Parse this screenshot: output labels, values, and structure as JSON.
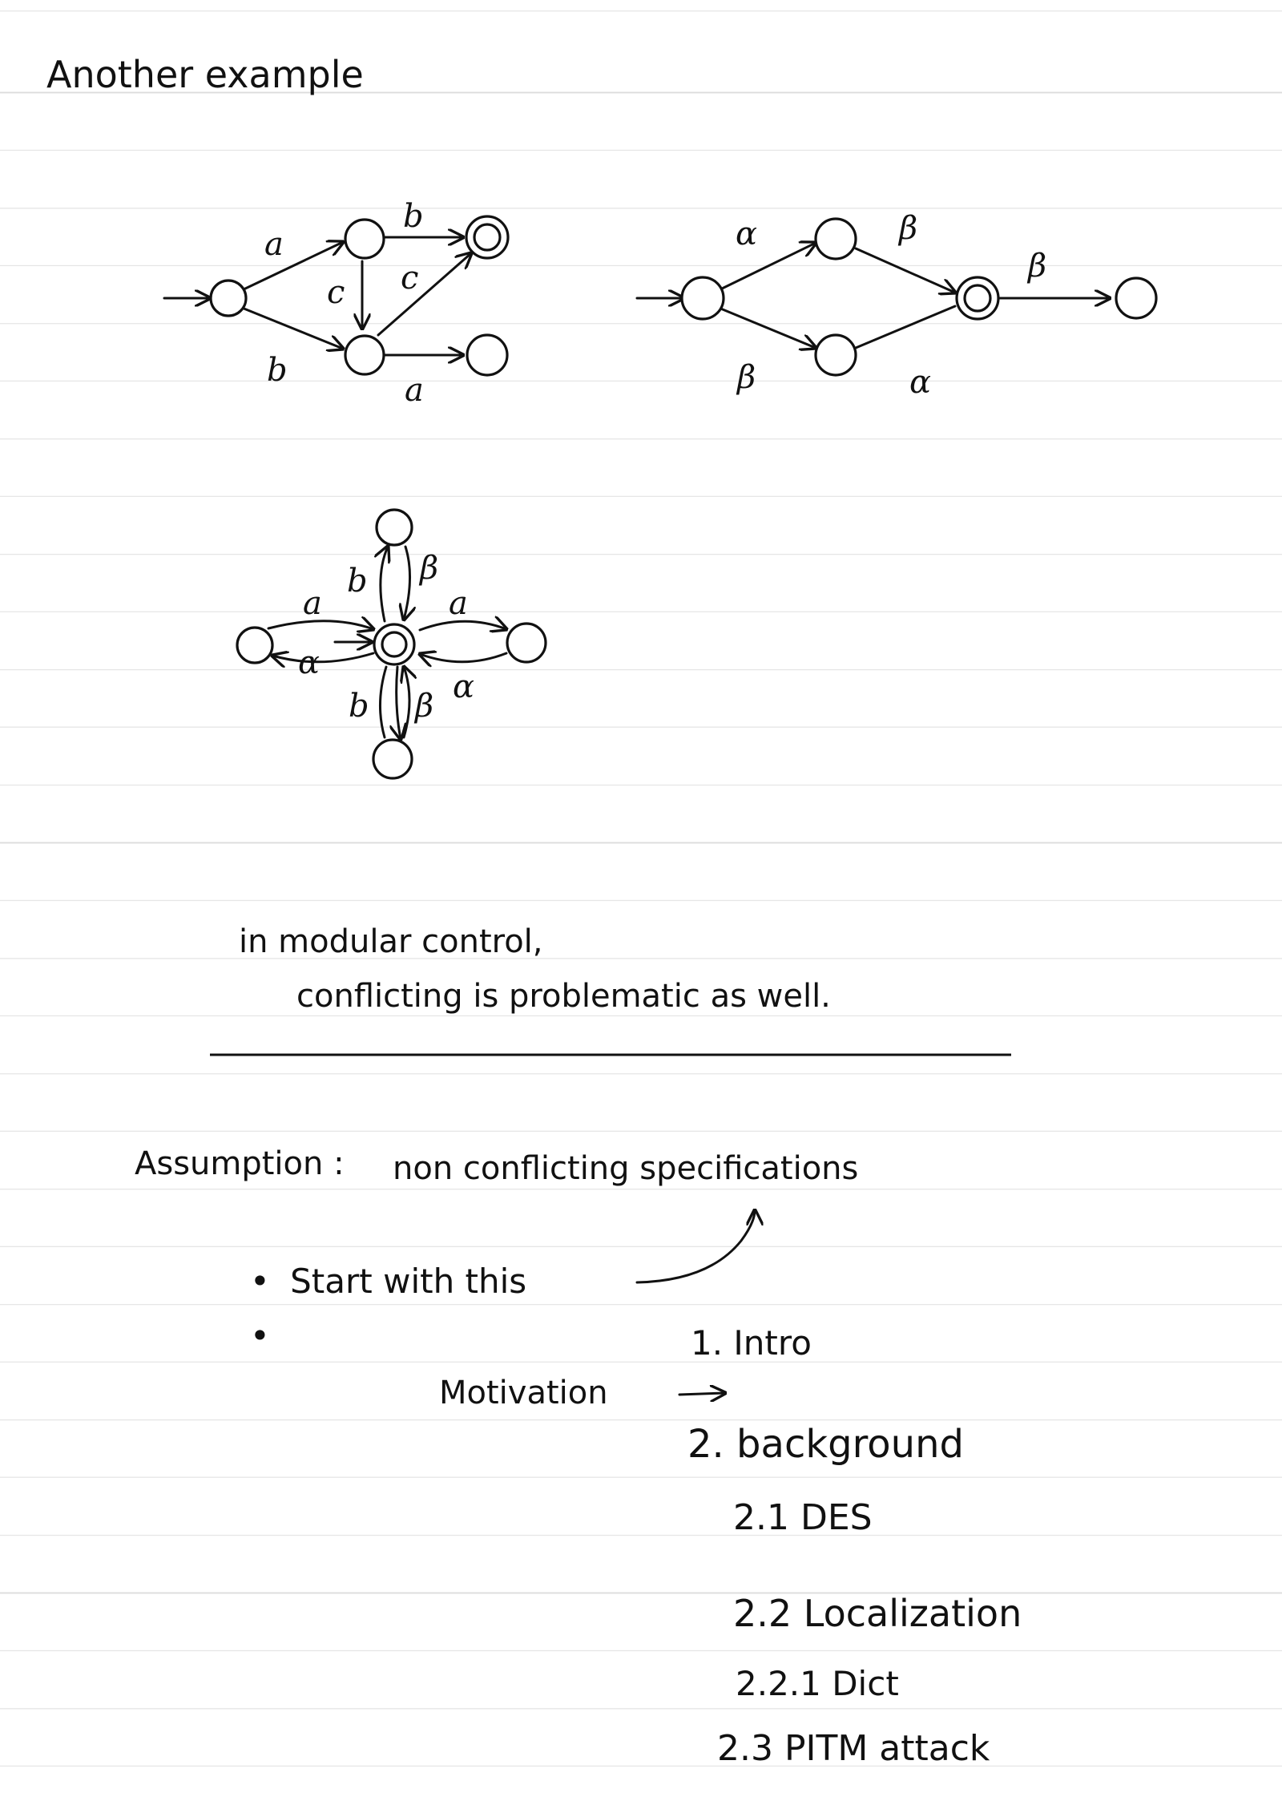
{
  "title": "Another example",
  "diagrams": {
    "d1": {
      "labels": {
        "a_top": "a",
        "b_top": "b",
        "c_mid": "c",
        "c_diag": "c",
        "b_bottom": "b",
        "a_bottom": "a"
      }
    },
    "d2": {
      "labels": {
        "alpha_top": "α",
        "beta_top": "β",
        "beta_right": "β",
        "beta_bottom": "β",
        "alpha_bottom": "α"
      }
    },
    "d3": {
      "labels": {
        "a_left": "a",
        "b_up": "b",
        "beta_up": "β",
        "a_right": "a",
        "alpha_left": "α",
        "b_down": "b",
        "beta_down": "β",
        "alpha_right": "α"
      }
    }
  },
  "remark": {
    "line1": "in modular control,",
    "line2": "conflicting is problematic as well."
  },
  "assumption": {
    "label": "Assumption :",
    "text": "non conflicting specifications"
  },
  "bullets": [
    {
      "text": "Start with this"
    },
    {
      "text": ""
    }
  ],
  "motivation": "Motivation",
  "outline": [
    {
      "text": "1. Intro"
    },
    {
      "text": "2. background"
    },
    {
      "text": "2.1  DES"
    },
    {
      "text": "2.2  Localization"
    },
    {
      "text": "2.2.1  Dict"
    },
    {
      "text": "2.3  PITM attack"
    }
  ]
}
